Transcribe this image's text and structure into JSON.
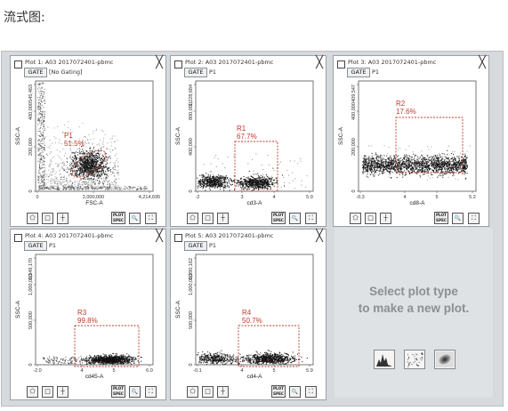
{
  "heading": "流式图:",
  "gate_button_label": "GATE",
  "spec_label_1": "PLOT",
  "spec_label_2": "SPEC",
  "panels": [
    {
      "title": "Plot 1: A03 2017072401-pbmc",
      "gate": "[No Gating]",
      "ylabel": "SSC-A",
      "xlabel": "FSC-A",
      "yticks": [
        "545,463",
        "400,000",
        "200,000",
        "0"
      ],
      "xticks": [
        "0",
        "2,000,000",
        "4,214,695"
      ],
      "gate_name": "P1",
      "gate_pct": "51.5%"
    },
    {
      "title": "Plot 2: A03 2017072401-pbmc",
      "gate": "P1",
      "ylabel": "SSC-A",
      "xlabel": "cd3-A",
      "yticks": [
        "1,228,684",
        "800,000",
        "400,000",
        "0"
      ],
      "xticks": [
        "-2",
        "3",
        "4",
        "5.0"
      ],
      "gate_name": "R1",
      "gate_pct": "67.7%"
    },
    {
      "title": "Plot 3: A03 2017072401-pbmc",
      "gate": "P1",
      "ylabel": "SSC-A",
      "xlabel": "cd8-A",
      "yticks": [
        "409,547",
        "400,000",
        "200,000",
        "0"
      ],
      "xticks": [
        "-0.3",
        "4",
        "5",
        "5.2"
      ],
      "gate_name": "R2",
      "gate_pct": "17.6%"
    },
    {
      "title": "Plot 4: A03 2017072401-pbmc",
      "gate": "P1",
      "ylabel": "SSC-A",
      "xlabel": "cd45-A",
      "yticks": [
        "1,349,170",
        "1,000,000",
        "500,000",
        "0"
      ],
      "xticks": [
        "-2.0",
        "4",
        "5",
        "6.0"
      ],
      "gate_name": "R3",
      "gate_pct": "99.8%"
    },
    {
      "title": "Plot 5: A03 2017072401-pbmc",
      "gate": "P1",
      "ylabel": "SSC-A",
      "xlabel": "cd4-A",
      "yticks": [
        "1,390,162",
        "1,000,000",
        "500,000",
        "0"
      ],
      "xticks": [
        "-0.1",
        "4",
        "5",
        "5.9"
      ],
      "gate_name": "R4",
      "gate_pct": "50.7%"
    }
  ],
  "empty_panel": {
    "line1": "Select plot type",
    "line2": "to make a new plot.",
    "types": [
      "histogram-icon",
      "dot-plot-icon",
      "density-plot-icon"
    ]
  },
  "colors": {
    "gate": "#c0392b",
    "dots": "#111111",
    "frame": "#d7dadd"
  }
}
